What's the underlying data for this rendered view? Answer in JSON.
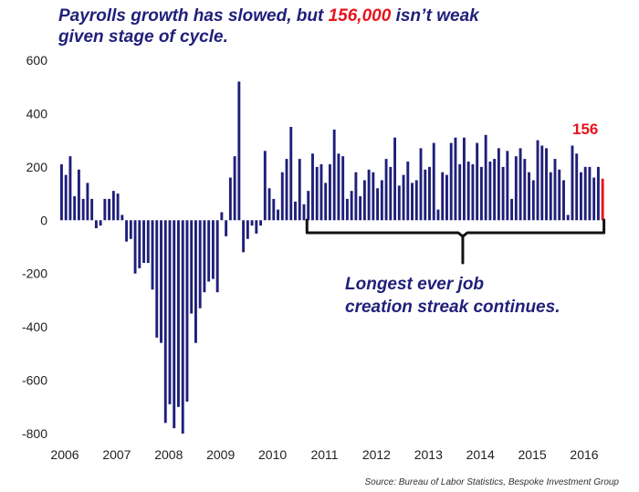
{
  "title": {
    "part1": "Payrolls growth has slowed, but ",
    "highlight": "156,000",
    "part2": " isn’t weak",
    "line2": "given stage of cycle."
  },
  "annotation": {
    "line1": "Longest ever job",
    "line2": "creation streak continues."
  },
  "last_value_label": "156",
  "source": "Source: Bureau of Labor Statistics, Bespoke Investment Group",
  "colors": {
    "bar": "#1f1f7a",
    "highlight": "#e8141c",
    "title": "#1f1f7a"
  },
  "chart_data": {
    "type": "bar",
    "x_tick_labels": [
      "2006",
      "2007",
      "2008",
      "2009",
      "2010",
      "2011",
      "2012",
      "2013",
      "2014",
      "2015",
      "2016"
    ],
    "y_tick_labels": [
      "600",
      "400",
      "200",
      "0",
      "-200",
      "-400",
      "-600",
      "-800"
    ],
    "ylim": [
      -800,
      600
    ],
    "grid": false,
    "start": "2006-01",
    "frequency": "monthly",
    "values": [
      210,
      170,
      240,
      90,
      190,
      80,
      140,
      80,
      -30,
      -20,
      80,
      80,
      110,
      100,
      20,
      -80,
      -70,
      -200,
      -180,
      -160,
      -160,
      -260,
      -440,
      -460,
      -760,
      -690,
      -780,
      -700,
      -800,
      -680,
      -350,
      -460,
      -330,
      -270,
      -230,
      -220,
      -270,
      30,
      -60,
      160,
      240,
      520,
      -120,
      -70,
      -20,
      -50,
      -20,
      260,
      120,
      80,
      40,
      180,
      230,
      350,
      70,
      230,
      60,
      110,
      250,
      200,
      210,
      140,
      210,
      340,
      250,
      240,
      80,
      110,
      180,
      90,
      150,
      190,
      180,
      120,
      150,
      230,
      200,
      310,
      130,
      170,
      220,
      140,
      150,
      270,
      190,
      200,
      290,
      40,
      180,
      170,
      290,
      310,
      210,
      310,
      220,
      210,
      290,
      200,
      320,
      220,
      230,
      270,
      200,
      260,
      80,
      240,
      270,
      230,
      180,
      150,
      300,
      280,
      270,
      180,
      230,
      190,
      150,
      20,
      280,
      250,
      180,
      200,
      200,
      160,
      200,
      156
    ]
  }
}
